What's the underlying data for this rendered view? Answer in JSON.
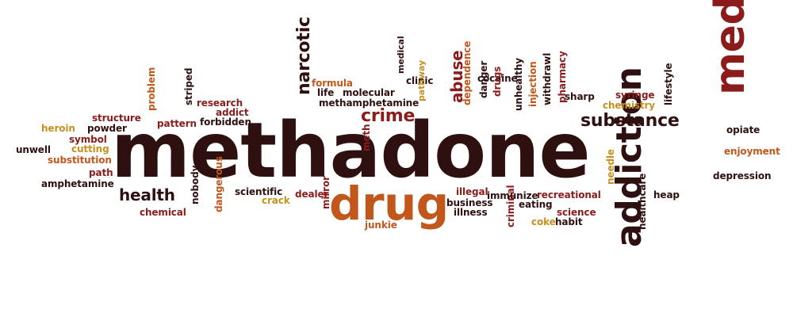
{
  "colors": {
    "c1": "#2f1010",
    "c2": "#8b1c1c",
    "c3": "#c2571c",
    "c4": "#c8901e"
  },
  "words": [
    {
      "id": "methadone",
      "text": "methadone",
      "color": "c1",
      "rot": 0
    },
    {
      "id": "medicine",
      "text": "medicine",
      "color": "c2",
      "rot": -90
    },
    {
      "id": "addiction",
      "text": "addiction",
      "color": "c1",
      "rot": -90
    },
    {
      "id": "drug",
      "text": "drug",
      "color": "c3",
      "rot": 0
    },
    {
      "id": "substance",
      "text": "substance",
      "color": "c1",
      "rot": 0
    },
    {
      "id": "crime",
      "text": "crime",
      "color": "c2",
      "rot": 0
    },
    {
      "id": "narcotic",
      "text": "narcotic",
      "color": "c1",
      "rot": -90
    },
    {
      "id": "abuse",
      "text": "abuse",
      "color": "c2",
      "rot": -90
    },
    {
      "id": "health",
      "text": "health",
      "color": "c1",
      "rot": 0
    },
    {
      "id": "heroin",
      "text": "heroin",
      "color": "c4",
      "rot": 0
    },
    {
      "id": "structure",
      "text": "structure",
      "color": "c2",
      "rot": 0
    },
    {
      "id": "powder",
      "text": "powder",
      "color": "c1",
      "rot": 0
    },
    {
      "id": "symbol",
      "text": "symbol",
      "color": "c2",
      "rot": 0
    },
    {
      "id": "unwell",
      "text": "unwell",
      "color": "c1",
      "rot": 0
    },
    {
      "id": "cutting",
      "text": "cutting",
      "color": "c4",
      "rot": 0
    },
    {
      "id": "substitution",
      "text": "substitution",
      "color": "c3",
      "rot": 0
    },
    {
      "id": "path",
      "text": "path",
      "color": "c2",
      "rot": 0
    },
    {
      "id": "amphetamine",
      "text": "amphetamine",
      "color": "c1",
      "rot": 0
    },
    {
      "id": "chemical",
      "text": "chemical",
      "color": "c2",
      "rot": 0
    },
    {
      "id": "problem",
      "text": "problem",
      "color": "c3",
      "rot": -90
    },
    {
      "id": "striped",
      "text": "striped",
      "color": "c1",
      "rot": -90
    },
    {
      "id": "research",
      "text": "research",
      "color": "c2",
      "rot": 0
    },
    {
      "id": "addict",
      "text": "addict",
      "color": "c2",
      "rot": 0
    },
    {
      "id": "pattern",
      "text": "pattern",
      "color": "c2",
      "rot": 0
    },
    {
      "id": "forbidden",
      "text": "forbidden",
      "color": "c1",
      "rot": 0
    },
    {
      "id": "nobody",
      "text": "nobody",
      "color": "c1",
      "rot": -90
    },
    {
      "id": "dangerous",
      "text": "dangerous",
      "color": "c3",
      "rot": -90
    },
    {
      "id": "scientific",
      "text": "scientific",
      "color": "c1",
      "rot": 0
    },
    {
      "id": "crack",
      "text": "crack",
      "color": "c4",
      "rot": 0
    },
    {
      "id": "dealer",
      "text": "dealer",
      "color": "c2",
      "rot": 0
    },
    {
      "id": "mirror",
      "text": "mirror",
      "color": "c2",
      "rot": -90
    },
    {
      "id": "junkie",
      "text": "junkie",
      "color": "c3",
      "rot": 0
    },
    {
      "id": "meth",
      "text": "meth",
      "color": "c2",
      "rot": -90
    },
    {
      "id": "formula",
      "text": "formula",
      "color": "c3",
      "rot": 0
    },
    {
      "id": "life",
      "text": "life",
      "color": "c1",
      "rot": 0
    },
    {
      "id": "molecular",
      "text": "molecular",
      "color": "c1",
      "rot": 0
    },
    {
      "id": "methamphetamine",
      "text": "methamphetamine",
      "color": "c1",
      "rot": 0
    },
    {
      "id": "medical",
      "text": "medical",
      "color": "c1",
      "rot": -90
    },
    {
      "id": "clinic",
      "text": "clinic",
      "color": "c1",
      "rot": 0
    },
    {
      "id": "pathway",
      "text": "pathway",
      "color": "c4",
      "rot": -90
    },
    {
      "id": "dependence",
      "text": "dependence",
      "color": "c3",
      "rot": -90
    },
    {
      "id": "cocaine",
      "text": "cocaine",
      "color": "c1",
      "rot": 0
    },
    {
      "id": "danger",
      "text": "danger",
      "color": "c1",
      "rot": -90
    },
    {
      "id": "drugs",
      "text": "drugs",
      "color": "c2",
      "rot": -90
    },
    {
      "id": "unhealthy",
      "text": "unhealthy",
      "color": "c1",
      "rot": -90
    },
    {
      "id": "injection",
      "text": "injection",
      "color": "c3",
      "rot": -90
    },
    {
      "id": "withdrawl",
      "text": "withdrawl",
      "color": "c1",
      "rot": -90
    },
    {
      "id": "pharmacy",
      "text": "pharmacy",
      "color": "c2",
      "rot": -90
    },
    {
      "id": "sharp",
      "text": "sharp",
      "color": "c1",
      "rot": 0
    },
    {
      "id": "syringe",
      "text": "syringe",
      "color": "c2",
      "rot": 0
    },
    {
      "id": "chemistry",
      "text": "chemistry",
      "color": "c4",
      "rot": 0
    },
    {
      "id": "lifestyle",
      "text": "lifestyle",
      "color": "c1",
      "rot": -90
    },
    {
      "id": "illegal",
      "text": "illegal",
      "color": "c2",
      "rot": 0
    },
    {
      "id": "business",
      "text": "business",
      "color": "c1",
      "rot": 0
    },
    {
      "id": "illness",
      "text": "illness",
      "color": "c1",
      "rot": 0
    },
    {
      "id": "criminal",
      "text": "criminal",
      "color": "c2",
      "rot": -90
    },
    {
      "id": "immunize",
      "text": "immunize",
      "color": "c1",
      "rot": 0
    },
    {
      "id": "eating",
      "text": "eating",
      "color": "c1",
      "rot": 0
    },
    {
      "id": "recreational",
      "text": "recreational",
      "color": "c2",
      "rot": 0
    },
    {
      "id": "science",
      "text": "science",
      "color": "c2",
      "rot": 0
    },
    {
      "id": "coke",
      "text": "coke",
      "color": "c4",
      "rot": 0
    },
    {
      "id": "habit",
      "text": "habit",
      "color": "c1",
      "rot": 0
    },
    {
      "id": "needle",
      "text": "needle",
      "color": "c4",
      "rot": -90
    },
    {
      "id": "healthcare",
      "text": "healthcare",
      "color": "c1",
      "rot": -90
    },
    {
      "id": "heap",
      "text": "heap",
      "color": "c1",
      "rot": 0
    },
    {
      "id": "opiate",
      "text": "opiate",
      "color": "c1",
      "rot": 0
    },
    {
      "id": "enjoyment",
      "text": "enjoyment",
      "color": "c3",
      "rot": 0
    },
    {
      "id": "depression",
      "text": "depression",
      "color": "c1",
      "rot": 0
    }
  ]
}
